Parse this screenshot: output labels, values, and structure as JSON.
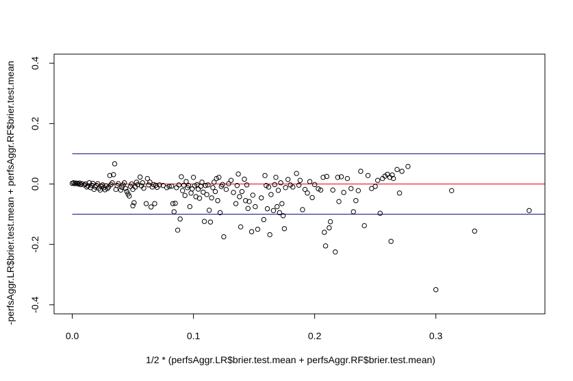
{
  "chart_data": {
    "type": "scatter",
    "title": "",
    "xlabel": "1/2 * (perfsAggr.LR$brier.test.mean + perfsAggr.RF$brier.test.mean)",
    "ylabel": "-perfsAggr.LR$brier.test.mean + perfsAggr.RF$brier.test.mean",
    "xlim": [
      -0.015,
      0.39
    ],
    "ylim": [
      -0.43,
      0.43
    ],
    "x_ticks": [
      0.0,
      0.1,
      0.2,
      0.3
    ],
    "x_tick_labels": [
      "0.0",
      "0.1",
      "0.2",
      "0.3"
    ],
    "y_ticks": [
      -0.4,
      -0.2,
      0.0,
      0.2,
      0.4
    ],
    "y_tick_labels": [
      "-0.4",
      "-0.2",
      "0.0",
      "0.2",
      "0.4"
    ],
    "grid": false,
    "reference_lines": [
      {
        "y": 0.1,
        "color": "#00008b"
      },
      {
        "y": 0.0,
        "color": "#e8000b"
      },
      {
        "y": -0.1,
        "color": "#00008b"
      }
    ],
    "marker": "open-circle",
    "points": [
      [
        0.0,
        0.002
      ],
      [
        0.001,
        0.004
      ],
      [
        0.002,
        0.001
      ],
      [
        0.003,
        0.003
      ],
      [
        0.004,
        0.002
      ],
      [
        0.005,
        0.0
      ],
      [
        0.006,
        0.003
      ],
      [
        0.007,
        -0.002
      ],
      [
        0.008,
        0.001
      ],
      [
        0.01,
        -0.003
      ],
      [
        0.011,
        0.0
      ],
      [
        0.012,
        -0.01
      ],
      [
        0.013,
        -0.006
      ],
      [
        0.014,
        0.004
      ],
      [
        0.015,
        -0.012
      ],
      [
        0.016,
        -0.004
      ],
      [
        0.017,
        0.002
      ],
      [
        0.018,
        -0.018
      ],
      [
        0.019,
        -0.01
      ],
      [
        0.02,
        -0.005
      ],
      [
        0.021,
        0.001
      ],
      [
        0.022,
        -0.014
      ],
      [
        0.023,
        -0.02
      ],
      [
        0.024,
        -0.008
      ],
      [
        0.025,
        -0.003
      ],
      [
        0.026,
        -0.012
      ],
      [
        0.027,
        -0.019
      ],
      [
        0.028,
        -0.006
      ],
      [
        0.029,
        -0.015
      ],
      [
        0.03,
        -0.01
      ],
      [
        0.031,
        0.028
      ],
      [
        0.032,
        -0.002
      ],
      [
        0.033,
        0.004
      ],
      [
        0.034,
        0.031
      ],
      [
        0.035,
        0.067
      ],
      [
        0.036,
        -0.018
      ],
      [
        0.037,
        -0.005
      ],
      [
        0.038,
        0.001
      ],
      [
        0.04,
        -0.02
      ],
      [
        0.041,
        -0.011
      ],
      [
        0.042,
        -0.003
      ],
      [
        0.043,
        0.004
      ],
      [
        0.044,
        -0.015
      ],
      [
        0.045,
        -0.025
      ],
      [
        0.046,
        -0.033
      ],
      [
        0.047,
        -0.04
      ],
      [
        0.048,
        -0.008
      ],
      [
        0.049,
        0.0
      ],
      [
        0.05,
        -0.018
      ],
      [
        0.05,
        -0.072
      ],
      [
        0.051,
        -0.062
      ],
      [
        0.052,
        -0.01
      ],
      [
        0.053,
        0.006
      ],
      [
        0.054,
        -0.002
      ],
      [
        0.056,
        0.023
      ],
      [
        0.057,
        -0.006
      ],
      [
        0.058,
        0.004
      ],
      [
        0.059,
        -0.014
      ],
      [
        0.061,
        -0.065
      ],
      [
        0.062,
        0.018
      ],
      [
        0.063,
        -0.003
      ],
      [
        0.064,
        0.006
      ],
      [
        0.065,
        -0.076
      ],
      [
        0.066,
        -0.01
      ],
      [
        0.067,
        -0.002
      ],
      [
        0.068,
        -0.065
      ],
      [
        0.069,
        -0.004
      ],
      [
        0.07,
        -0.011
      ],
      [
        0.072,
        -0.003
      ],
      [
        0.075,
        -0.005
      ],
      [
        0.078,
        -0.012
      ],
      [
        0.08,
        -0.008
      ],
      [
        0.082,
        -0.007
      ],
      [
        0.083,
        -0.065
      ],
      [
        0.084,
        -0.092
      ],
      [
        0.085,
        -0.064
      ],
      [
        0.086,
        -0.012
      ],
      [
        0.087,
        -0.153
      ],
      [
        0.088,
        -0.003
      ],
      [
        0.089,
        -0.116
      ],
      [
        0.09,
        0.024
      ],
      [
        0.091,
        -0.022
      ],
      [
        0.092,
        -0.004
      ],
      [
        0.093,
        -0.038
      ],
      [
        0.094,
        0.008
      ],
      [
        0.095,
        -0.012
      ],
      [
        0.096,
        -0.005
      ],
      [
        0.097,
        -0.075
      ],
      [
        0.098,
        -0.03
      ],
      [
        0.099,
        -0.016
      ],
      [
        0.1,
        0.022
      ],
      [
        0.101,
        -0.006
      ],
      [
        0.102,
        -0.042
      ],
      [
        0.103,
        -0.002
      ],
      [
        0.104,
        -0.017
      ],
      [
        0.105,
        -0.047
      ],
      [
        0.106,
        -0.008
      ],
      [
        0.107,
        0.006
      ],
      [
        0.108,
        -0.027
      ],
      [
        0.109,
        -0.124
      ],
      [
        0.11,
        -0.005
      ],
      [
        0.111,
        -0.035
      ],
      [
        0.112,
        -0.003
      ],
      [
        0.113,
        -0.087
      ],
      [
        0.114,
        -0.126
      ],
      [
        0.115,
        -0.046
      ],
      [
        0.116,
        -0.012
      ],
      [
        0.117,
        0.006
      ],
      [
        0.118,
        -0.025
      ],
      [
        0.119,
        0.018
      ],
      [
        0.12,
        -0.055
      ],
      [
        0.121,
        0.022
      ],
      [
        0.122,
        -0.095
      ],
      [
        0.123,
        -0.008
      ],
      [
        0.124,
        -0.002
      ],
      [
        0.125,
        -0.175
      ],
      [
        0.127,
        -0.018
      ],
      [
        0.129,
        0.001
      ],
      [
        0.131,
        0.012
      ],
      [
        0.133,
        -0.028
      ],
      [
        0.135,
        -0.065
      ],
      [
        0.136,
        -0.005
      ],
      [
        0.137,
        0.033
      ],
      [
        0.138,
        -0.042
      ],
      [
        0.139,
        -0.142
      ],
      [
        0.14,
        -0.025
      ],
      [
        0.142,
        0.016
      ],
      [
        0.143,
        -0.055
      ],
      [
        0.144,
        -0.003
      ],
      [
        0.145,
        -0.081
      ],
      [
        0.146,
        -0.058
      ],
      [
        0.148,
        -0.158
      ],
      [
        0.149,
        -0.037
      ],
      [
        0.151,
        -0.075
      ],
      [
        0.153,
        -0.15
      ],
      [
        0.156,
        -0.046
      ],
      [
        0.158,
        -0.118
      ],
      [
        0.159,
        0.028
      ],
      [
        0.16,
        -0.005
      ],
      [
        0.161,
        -0.082
      ],
      [
        0.162,
        -0.01
      ],
      [
        0.163,
        -0.168
      ],
      [
        0.164,
        -0.035
      ],
      [
        0.166,
        -0.088
      ],
      [
        0.167,
        -0.002
      ],
      [
        0.168,
        0.022
      ],
      [
        0.169,
        -0.075
      ],
      [
        0.17,
        -0.021
      ],
      [
        0.171,
        -0.095
      ],
      [
        0.172,
        0.004
      ],
      [
        0.173,
        -0.065
      ],
      [
        0.174,
        -0.105
      ],
      [
        0.175,
        -0.148
      ],
      [
        0.176,
        -0.012
      ],
      [
        0.178,
        0.015
      ],
      [
        0.18,
        -0.003
      ],
      [
        0.182,
        -0.01
      ],
      [
        0.185,
        0.035
      ],
      [
        0.187,
        -0.004
      ],
      [
        0.188,
        0.012
      ],
      [
        0.19,
        -0.085
      ],
      [
        0.192,
        -0.018
      ],
      [
        0.194,
        -0.03
      ],
      [
        0.196,
        0.008
      ],
      [
        0.198,
        -0.045
      ],
      [
        0.2,
        -0.002
      ],
      [
        0.203,
        -0.016
      ],
      [
        0.205,
        -0.02
      ],
      [
        0.207,
        0.022
      ],
      [
        0.208,
        -0.16
      ],
      [
        0.209,
        -0.205
      ],
      [
        0.21,
        0.025
      ],
      [
        0.212,
        -0.145
      ],
      [
        0.213,
        -0.125
      ],
      [
        0.215,
        -0.02
      ],
      [
        0.217,
        -0.225
      ],
      [
        0.219,
        0.022
      ],
      [
        0.22,
        -0.058
      ],
      [
        0.222,
        0.024
      ],
      [
        0.224,
        -0.028
      ],
      [
        0.227,
        0.018
      ],
      [
        0.23,
        -0.015
      ],
      [
        0.232,
        -0.092
      ],
      [
        0.234,
        -0.055
      ],
      [
        0.236,
        -0.022
      ],
      [
        0.238,
        0.042
      ],
      [
        0.241,
        -0.138
      ],
      [
        0.244,
        0.028
      ],
      [
        0.247,
        -0.015
      ],
      [
        0.25,
        -0.008
      ],
      [
        0.252,
        0.012
      ],
      [
        0.254,
        -0.097
      ],
      [
        0.256,
        0.018
      ],
      [
        0.258,
        0.026
      ],
      [
        0.26,
        0.032
      ],
      [
        0.262,
        0.022
      ],
      [
        0.263,
        -0.19
      ],
      [
        0.264,
        0.03
      ],
      [
        0.265,
        0.018
      ],
      [
        0.268,
        0.048
      ],
      [
        0.27,
        -0.03
      ],
      [
        0.272,
        0.042
      ],
      [
        0.277,
        0.058
      ],
      [
        0.3,
        -0.35
      ],
      [
        0.313,
        -0.022
      ],
      [
        0.332,
        -0.156
      ],
      [
        0.377,
        -0.088
      ]
    ]
  }
}
